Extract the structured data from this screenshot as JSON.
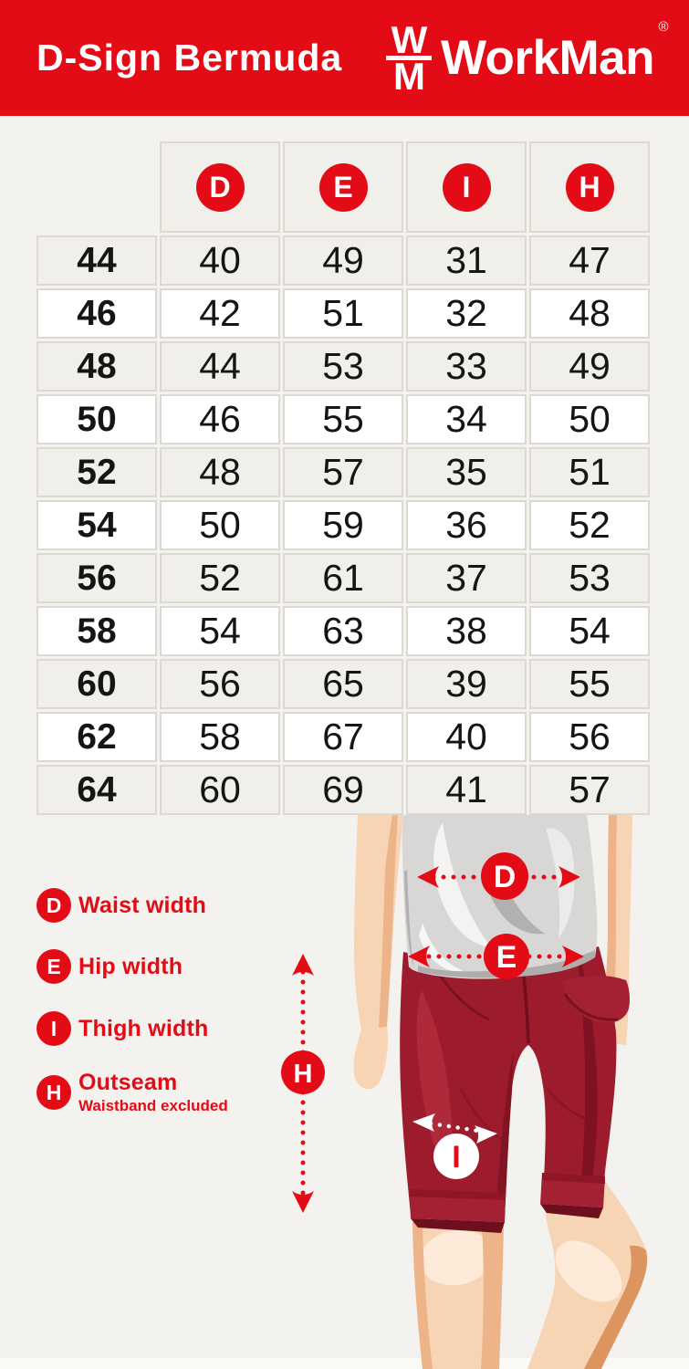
{
  "header": {
    "title": "D-Sign Bermuda",
    "brand": "WorkMan",
    "brand_mark_top": "W",
    "brand_mark_bottom": "M",
    "registered_mark": "®"
  },
  "table": {
    "columns": [
      "D",
      "E",
      "I",
      "H"
    ],
    "rows": [
      {
        "size": "44",
        "values": [
          "40",
          "49",
          "31",
          "47"
        ]
      },
      {
        "size": "46",
        "values": [
          "42",
          "51",
          "32",
          "48"
        ]
      },
      {
        "size": "48",
        "values": [
          "44",
          "53",
          "33",
          "49"
        ]
      },
      {
        "size": "50",
        "values": [
          "46",
          "55",
          "34",
          "50"
        ]
      },
      {
        "size": "52",
        "values": [
          "48",
          "57",
          "35",
          "51"
        ]
      },
      {
        "size": "54",
        "values": [
          "50",
          "59",
          "36",
          "52"
        ]
      },
      {
        "size": "56",
        "values": [
          "52",
          "61",
          "37",
          "53"
        ]
      },
      {
        "size": "58",
        "values": [
          "54",
          "63",
          "38",
          "54"
        ]
      },
      {
        "size": "60",
        "values": [
          "56",
          "65",
          "39",
          "55"
        ]
      },
      {
        "size": "62",
        "values": [
          "58",
          "67",
          "40",
          "56"
        ]
      },
      {
        "size": "64",
        "values": [
          "60",
          "69",
          "41",
          "57"
        ]
      }
    ]
  },
  "legend": {
    "items": [
      {
        "letter": "D",
        "label": "Waist width"
      },
      {
        "letter": "E",
        "label": "Hip width"
      },
      {
        "letter": "I",
        "label": "Thigh width"
      },
      {
        "letter": "H",
        "label": "Outseam",
        "note": "Waistband excluded"
      }
    ]
  },
  "diagram": {
    "waist_marker": "D",
    "hip_marker": "E",
    "thigh_marker": "I",
    "outseam_marker": "H"
  },
  "colors": {
    "accent_red": "#e30b16",
    "page_bg": "#f4f2ee",
    "table_alt_row": "#f1efea",
    "table_row": "#ffffff",
    "table_border": "#dcd9d3",
    "shorts_red": "#9c1b2c",
    "shirt_gray": "#d8d7d6",
    "skin": "#f7d4b4"
  }
}
